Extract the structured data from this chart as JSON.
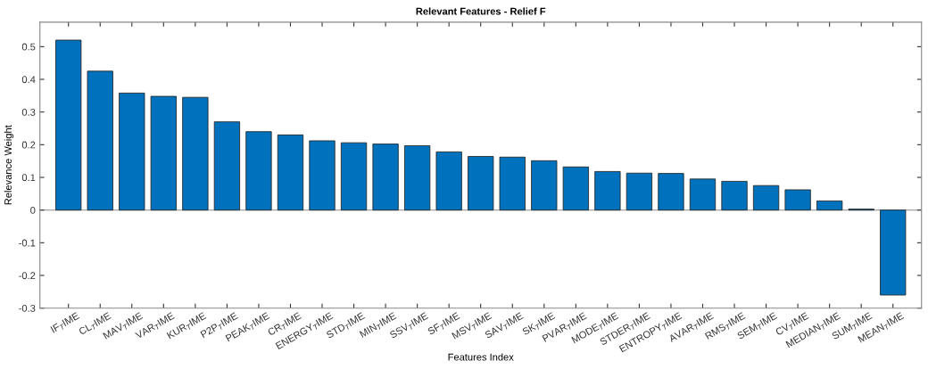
{
  "chart_data": {
    "type": "bar",
    "title": "Relevant Features - Relief F",
    "xlabel": "Features Index",
    "ylabel": "Relevance Weight",
    "categories": [
      "IF$_{T}$IME",
      "CL$_{T}$IME",
      "MAV$_{T}$IME",
      "VAR$_{T}$IME",
      "KUR$_{T}$IME",
      "P2P$_{T}$IME",
      "PEAK$_{T}$IME",
      "CR$_{T}$IME",
      "ENERGY$_{T}$IME",
      "STD$_{T}$IME",
      "MIN$_{T}$IME",
      "SSV$_{T}$IME",
      "SF$_{T}$IME",
      "MSV$_{T}$IME",
      "SAV$_{T}$IME",
      "SK$_{T}$IME",
      "PVAR$_{T}$IME",
      "MODE$_{T}$IME",
      "STDER$_{T}$IME",
      "ENTROPY$_{T}$IME",
      "AVAR$_{T}$IME",
      "RMS$_{T}$IME",
      "SEM$_{T}$IME",
      "CV$_{T}$IME",
      "MEDIAN$_{T}$IME",
      "SUM$_{T}$IME",
      "MEAN$_{T}$IME"
    ],
    "values": [
      0.52,
      0.425,
      0.358,
      0.348,
      0.345,
      0.27,
      0.24,
      0.23,
      0.212,
      0.206,
      0.202,
      0.197,
      0.178,
      0.164,
      0.162,
      0.151,
      0.132,
      0.118,
      0.113,
      0.112,
      0.095,
      0.088,
      0.075,
      0.062,
      0.028,
      0.003,
      -0.26
    ],
    "color": "#0072bd",
    "ylim": [
      -0.3,
      0.575
    ],
    "yticks": [
      -0.3,
      -0.2,
      -0.1,
      0,
      0.1,
      0.2,
      0.3,
      0.4,
      0.5
    ],
    "grid": false,
    "ref_lines": [
      {
        "axis": "y",
        "value": 0,
        "color": "#888888"
      }
    ]
  }
}
